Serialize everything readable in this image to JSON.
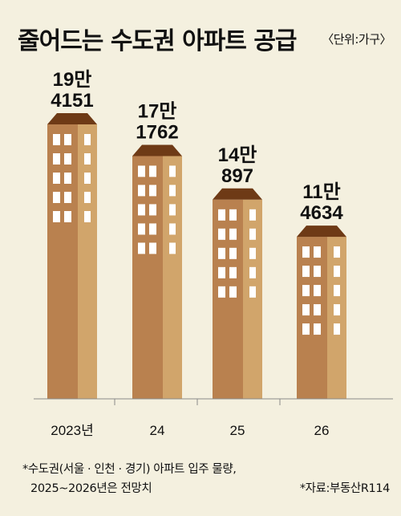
{
  "header": {
    "title": "줄어드는 수도권 아파트 공급",
    "unit": "〈단위:가구〉"
  },
  "footer": {
    "note_line1": "*수도권(서울 · 인천 · 경기) 아파트 입주 물량,",
    "note_line2": "2025~2026년은 전망치",
    "source": "*자료:부동산R114"
  },
  "colors": {
    "background": "#f4f0df",
    "building_front": "#b9814f",
    "building_side": "#d1a56b",
    "roof": "#6e3a16",
    "window": "#ffffff"
  },
  "chart_data": {
    "type": "bar",
    "style": "pictorial-buildings",
    "categories": [
      "2023년",
      "24",
      "25",
      "26"
    ],
    "values": [
      194151,
      171762,
      140897,
      114634
    ],
    "value_labels": [
      [
        "19만",
        "4151"
      ],
      [
        "17만",
        "1762"
      ],
      [
        "14만",
        "897"
      ],
      [
        "11만",
        "4634"
      ]
    ],
    "title": "줄어드는 수도권 아파트 공급",
    "unit": "가구",
    "xlabel": "",
    "ylabel": "",
    "grid": false,
    "legend": "none"
  }
}
